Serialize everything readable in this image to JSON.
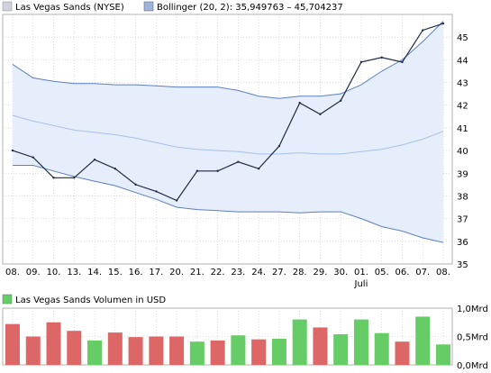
{
  "legend": {
    "price_label": "Las Vegas Sands (NYSE)",
    "bollinger_label": "Bollinger (20, 2): 35,949763 – 45,704237",
    "volume_label": "Las Vegas Sands Volumen in USD"
  },
  "colors": {
    "price_line": "#1f2a44",
    "band_line": "#5b7fc0",
    "band_fill": "#e6eefb",
    "mid_line": "#a8c0ec",
    "grid": "#c8c8c8",
    "volume_up": "#66cc66",
    "volume_down": "#dd6666",
    "legend_price": "#cfd3dc",
    "legend_bollinger": "#9fb4da",
    "legend_volume": "#66cc66"
  },
  "chart_data": [
    {
      "type": "line",
      "categories": [
        "08.",
        "09.",
        "10.",
        "13.",
        "14.",
        "15.",
        "16.",
        "17.",
        "20.",
        "21.",
        "22.",
        "23.",
        "24.",
        "27.",
        "28.",
        "29.",
        "30.",
        "01.",
        "05.",
        "06.",
        "07.",
        "08."
      ],
      "month_label": "Juli",
      "month_label_index": 17,
      "ylim": [
        35,
        46
      ],
      "yticks": [
        35,
        36,
        37,
        38,
        39,
        40,
        41,
        42,
        43,
        44,
        45
      ],
      "grid": true,
      "series": [
        {
          "name": "Las Vegas Sands (NYSE)",
          "values": [
            40.0,
            39.7,
            38.8,
            38.8,
            39.6,
            39.2,
            38.5,
            38.2,
            37.8,
            39.1,
            39.1,
            39.5,
            39.2,
            40.2,
            42.1,
            41.6,
            42.2,
            43.9,
            44.1,
            43.9,
            45.3,
            45.6
          ]
        },
        {
          "values": [
            43.8,
            43.2,
            43.05,
            42.95,
            42.95,
            42.9,
            42.9,
            42.85,
            42.8,
            42.8,
            42.8,
            42.65,
            42.4,
            42.3,
            42.4,
            42.4,
            42.5,
            42.9,
            43.5,
            44.0,
            44.8,
            45.7
          ]
        },
        {
          "values": [
            41.55,
            41.3,
            41.1,
            40.9,
            40.8,
            40.7,
            40.55,
            40.35,
            40.15,
            40.05,
            40.0,
            39.95,
            39.85,
            39.85,
            39.9,
            39.85,
            39.85,
            39.95,
            40.05,
            40.25,
            40.5,
            40.85
          ]
        },
        {
          "values": [
            39.35,
            39.35,
            39.1,
            38.85,
            38.65,
            38.45,
            38.15,
            37.85,
            37.5,
            37.4,
            37.35,
            37.3,
            37.3,
            37.3,
            37.25,
            37.3,
            37.3,
            37.0,
            36.65,
            36.45,
            36.15,
            35.95
          ]
        }
      ]
    },
    {
      "type": "bar",
      "categories": [
        "08.",
        "09.",
        "10.",
        "13.",
        "14.",
        "15.",
        "16.",
        "17.",
        "20.",
        "21.",
        "22.",
        "23.",
        "24.",
        "27.",
        "28.",
        "29.",
        "30.",
        "01.",
        "05.",
        "06.",
        "07.",
        "08."
      ],
      "series": [
        {
          "name": "Las Vegas Sands Volumen in USD",
          "values": [
            0.72,
            0.5,
            0.75,
            0.6,
            0.43,
            0.57,
            0.49,
            0.5,
            0.5,
            0.41,
            0.43,
            0.52,
            0.45,
            0.46,
            0.8,
            0.66,
            0.54,
            0.8,
            0.56,
            0.41,
            0.85,
            0.36
          ]
        }
      ],
      "direction": [
        "down",
        "down",
        "down",
        "down",
        "up",
        "down",
        "down",
        "down",
        "down",
        "up",
        "down",
        "up",
        "down",
        "up",
        "up",
        "down",
        "up",
        "up",
        "up",
        "down",
        "up",
        "up"
      ],
      "ylim": [
        0,
        1.0
      ],
      "ytick_labels": [
        "1,0Mrd",
        "0,5Mrd",
        "0,0Mrd"
      ]
    }
  ]
}
